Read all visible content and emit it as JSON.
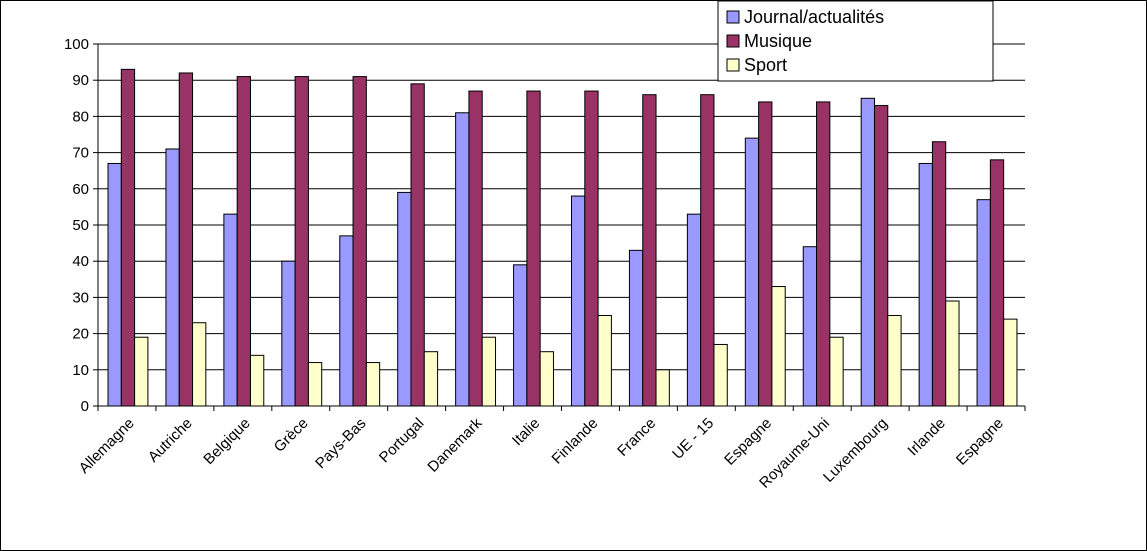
{
  "chart_data": {
    "type": "bar",
    "title": "",
    "xlabel": "",
    "ylabel": "",
    "ylim": [
      0,
      100
    ],
    "yticks": [
      0,
      10,
      20,
      30,
      40,
      50,
      60,
      70,
      80,
      90,
      100
    ],
    "grid": true,
    "legend_position": "top-right",
    "categories": [
      "Allemagne",
      "Autriche",
      "Belgique",
      "Grèce",
      "Pays-Bas",
      "Portugal",
      "Danemark",
      "Italie",
      "Finlande",
      "France",
      "UE - 15",
      "Espagne",
      "Royaume-Uni",
      "Luxembourg",
      "Irlande",
      "Espagne"
    ],
    "series": [
      {
        "name": "Journal/actualités",
        "color": "#9999ff",
        "values": [
          67,
          71,
          53,
          40,
          47,
          59,
          81,
          39,
          58,
          43,
          53,
          74,
          44,
          85,
          67,
          57
        ]
      },
      {
        "name": "Musique",
        "color": "#993366",
        "values": [
          93,
          92,
          91,
          91,
          91,
          89,
          87,
          87,
          87,
          86,
          86,
          84,
          84,
          83,
          73,
          68
        ]
      },
      {
        "name": "Sport",
        "color": "#ffffcc",
        "values": [
          19,
          23,
          14,
          12,
          12,
          15,
          19,
          15,
          25,
          10,
          17,
          33,
          19,
          25,
          29,
          24
        ]
      }
    ]
  }
}
